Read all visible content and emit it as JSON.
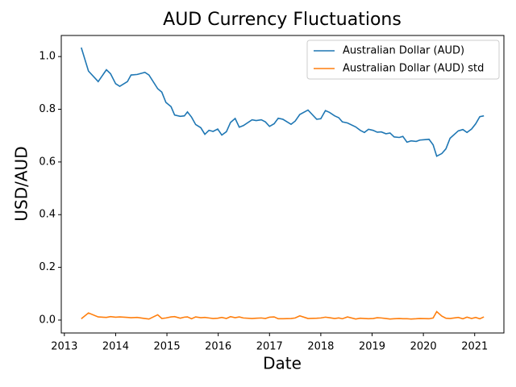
{
  "chart_data": {
    "type": "line",
    "title": "AUD Currency Fluctuations",
    "xlabel": "Date",
    "ylabel": "USD/AUD",
    "x": [
      2013.33,
      2013.47,
      2013.66,
      2013.82,
      2013.9,
      2014.0,
      2014.08,
      2014.23,
      2014.3,
      2014.42,
      2014.57,
      2014.65,
      2014.82,
      2014.9,
      2014.98,
      2015.08,
      2015.15,
      2015.26,
      2015.34,
      2015.4,
      2015.48,
      2015.56,
      2015.66,
      2015.74,
      2015.82,
      2015.9,
      2015.99,
      2016.07,
      2016.16,
      2016.24,
      2016.33,
      2016.41,
      2016.49,
      2016.66,
      2016.74,
      2016.84,
      2016.92,
      2017.0,
      2017.09,
      2017.17,
      2017.26,
      2017.42,
      2017.5,
      2017.59,
      2017.75,
      2017.92,
      2018.0,
      2018.09,
      2018.17,
      2018.27,
      2018.35,
      2018.42,
      2018.52,
      2018.68,
      2018.77,
      2018.85,
      2018.93,
      2019.02,
      2019.1,
      2019.18,
      2019.27,
      2019.35,
      2019.43,
      2019.53,
      2019.6,
      2019.68,
      2019.76,
      2019.86,
      2019.93,
      2020.11,
      2020.19,
      2020.26,
      2020.36,
      2020.44,
      2020.52,
      2020.68,
      2020.77,
      2020.85,
      2020.94,
      2021.02,
      2021.1,
      2021.18
    ],
    "series": [
      {
        "name": "Australian Dollar (AUD)",
        "color": "#1f77b4",
        "values": [
          1.034,
          0.945,
          0.905,
          0.95,
          0.935,
          0.897,
          0.887,
          0.905,
          0.93,
          0.932,
          0.94,
          0.93,
          0.878,
          0.865,
          0.826,
          0.81,
          0.778,
          0.773,
          0.775,
          0.79,
          0.77,
          0.742,
          0.73,
          0.705,
          0.72,
          0.716,
          0.725,
          0.702,
          0.715,
          0.75,
          0.765,
          0.732,
          0.738,
          0.76,
          0.757,
          0.76,
          0.752,
          0.735,
          0.745,
          0.766,
          0.762,
          0.743,
          0.755,
          0.78,
          0.797,
          0.762,
          0.764,
          0.795,
          0.788,
          0.775,
          0.768,
          0.752,
          0.748,
          0.733,
          0.72,
          0.712,
          0.724,
          0.72,
          0.713,
          0.714,
          0.707,
          0.71,
          0.695,
          0.693,
          0.697,
          0.675,
          0.68,
          0.678,
          0.683,
          0.686,
          0.665,
          0.622,
          0.632,
          0.65,
          0.69,
          0.718,
          0.723,
          0.712,
          0.725,
          0.745,
          0.772,
          0.775
        ]
      },
      {
        "name": "Australian Dollar (AUD) std",
        "color": "#ff7f0e",
        "values": [
          0.005,
          0.027,
          0.012,
          0.01,
          0.013,
          0.011,
          0.012,
          0.01,
          0.009,
          0.01,
          0.006,
          0.004,
          0.02,
          0.006,
          0.008,
          0.012,
          0.013,
          0.007,
          0.011,
          0.012,
          0.005,
          0.012,
          0.009,
          0.01,
          0.008,
          0.006,
          0.007,
          0.01,
          0.006,
          0.013,
          0.009,
          0.012,
          0.008,
          0.006,
          0.007,
          0.008,
          0.006,
          0.011,
          0.012,
          0.005,
          0.005,
          0.006,
          0.008,
          0.016,
          0.006,
          0.007,
          0.008,
          0.011,
          0.009,
          0.006,
          0.008,
          0.005,
          0.012,
          0.004,
          0.007,
          0.006,
          0.005,
          0.006,
          0.009,
          0.008,
          0.006,
          0.004,
          0.005,
          0.006,
          0.005,
          0.005,
          0.004,
          0.005,
          0.006,
          0.005,
          0.008,
          0.032,
          0.015,
          0.007,
          0.006,
          0.01,
          0.005,
          0.011,
          0.006,
          0.01,
          0.005,
          0.012
        ]
      }
    ],
    "xlim": [
      2012.94,
      2021.57
    ],
    "xticks": [
      2013,
      2014,
      2015,
      2016,
      2017,
      2018,
      2019,
      2020,
      2021
    ],
    "ylim": [
      -0.049,
      1.08
    ],
    "yticks": [
      {
        "value": 0,
        "label": "0.0"
      },
      0.2,
      0.4,
      0.6,
      0.8,
      {
        "value": 1,
        "label": "1.0"
      }
    ],
    "grid": false,
    "legend": "upper right"
  }
}
